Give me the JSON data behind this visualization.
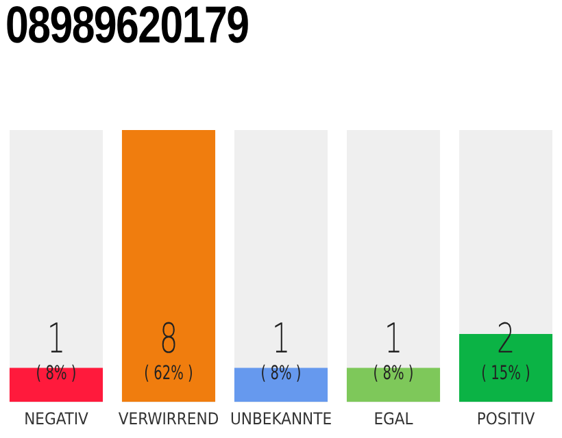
{
  "chart_data": {
    "type": "bar",
    "title": "08989620179",
    "categories": [
      "NEGATIV",
      "VERWIRREND",
      "UNBEKANNTE",
      "EGAL",
      "POSITIV"
    ],
    "values": [
      1,
      8,
      1,
      1,
      2
    ],
    "colors": [
      "#ff1a3c",
      "#f07d0e",
      "#6699ee",
      "#7ec85a",
      "#0bb345"
    ],
    "data_labels": true,
    "annotations": [
      {
        "text": "( 8% )",
        "x": "NEGATIV",
        "y": 0
      },
      {
        "text": "( 62% )",
        "x": "VERWIRREND",
        "y": 0
      },
      {
        "text": "( 8% )",
        "x": "UNBEKANNTE",
        "y": 0
      },
      {
        "text": "( 8% )",
        "x": "EGAL",
        "y": 0
      },
      {
        "text": "( 15% )",
        "x": "POSITIV",
        "y": 0
      }
    ],
    "grid": false,
    "legend": false
  }
}
